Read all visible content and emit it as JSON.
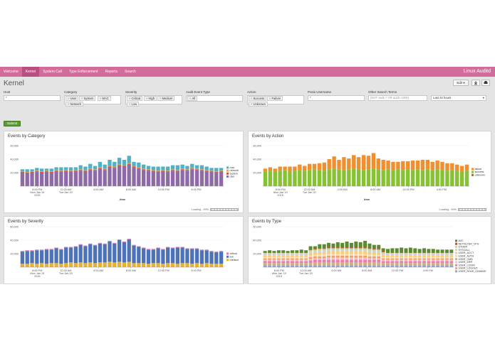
{
  "nav": {
    "items": [
      "Welcome",
      "Kernel",
      "System Call",
      "Type Enforcement",
      "Reports",
      "Search"
    ],
    "active": 1,
    "app_name": "Linux Auditd",
    "accent": "#d36b9b"
  },
  "page": {
    "title": "Kernel",
    "edit_label": "Edit ▾",
    "download_icon": "download-icon",
    "print_icon": "print-icon"
  },
  "filters": {
    "host": {
      "label": "Host",
      "value": "*"
    },
    "category": {
      "label": "Category",
      "tokens": [
        "User",
        "System",
        "MAC",
        "Network"
      ]
    },
    "severity": {
      "label": "Severity",
      "tokens": [
        "Critical",
        "High",
        "Medium",
        "Low"
      ]
    },
    "audit_event_type": {
      "label": "Audit Event Type",
      "tokens": [
        "All"
      ]
    },
    "action": {
      "label": "Action",
      "tokens": [
        "Success",
        "Failure",
        "Unknown"
      ]
    },
    "posix_username": {
      "label": "Posix Username",
      "value": "*"
    },
    "other_terms": {
      "label": "Other Search Terms",
      "placeholder": "(NOT auid=* OR auid!=1000)"
    },
    "time_range": {
      "value": "Last 24 hours"
    },
    "submit_label": "Submit"
  },
  "panels": [
    {
      "title": "Events by Category",
      "xfield": "_time",
      "loading": "Loading - 99%"
    },
    {
      "title": "Events by Action",
      "xfield": "_time",
      "loading": "Loading - 99%"
    },
    {
      "title": "Events by Severity"
    },
    {
      "title": "Events by Type"
    }
  ],
  "chart_data": [
    {
      "type": "bar",
      "stacked": true,
      "title": "Events by Category",
      "xlabel": "_time",
      "ylim": [
        0,
        60000
      ],
      "yticks": [
        "60,000",
        "40,000",
        "20,000"
      ],
      "xticks": [
        "8:00 PM\nMon Jan 19\n2015",
        "12:00 AM\nTue Jan 20",
        "4:00 AM",
        "8:00 AM",
        "12:00 PM",
        "4:00 PM"
      ],
      "legend_position": "right",
      "series": [
        {
          "name": "user",
          "color": "#8e6aa8",
          "values": [
            20,
            19,
            20,
            21,
            20,
            21,
            20,
            22,
            21,
            22,
            21,
            22,
            23,
            22,
            24,
            23,
            26,
            24,
            28,
            27,
            30,
            29,
            32,
            28,
            26,
            24,
            23,
            22,
            21,
            22,
            21,
            23,
            22,
            24,
            23,
            25,
            24,
            23,
            22,
            21,
            20,
            21
          ]
        },
        {
          "name": "system",
          "color": "#d04a3a",
          "values": [
            1,
            1,
            1,
            1,
            1,
            1,
            1,
            1,
            1,
            1,
            1,
            1,
            1,
            1,
            1,
            1,
            1,
            1,
            1,
            1,
            1,
            1,
            1,
            1,
            1,
            1,
            1,
            1,
            1,
            1,
            1,
            1,
            1,
            1,
            1,
            1,
            1,
            1,
            1,
            1,
            1,
            1
          ]
        },
        {
          "name": "network",
          "color": "#e9a43d",
          "values": [
            1,
            1,
            1,
            1,
            1,
            1,
            1,
            1,
            1,
            1,
            1,
            1,
            1,
            1,
            1,
            1,
            1,
            1,
            1,
            1,
            1,
            1,
            1,
            1,
            1,
            1,
            1,
            1,
            1,
            1,
            1,
            1,
            1,
            1,
            1,
            1,
            1,
            1,
            1,
            1,
            1,
            1
          ]
        },
        {
          "name": "mac",
          "color": "#4fb0c6",
          "values": [
            3,
            4,
            3,
            4,
            4,
            3,
            4,
            4,
            5,
            4,
            5,
            4,
            6,
            5,
            7,
            5,
            8,
            6,
            9,
            7,
            10,
            8,
            11,
            6,
            7,
            6,
            5,
            5,
            6,
            5,
            6,
            6,
            7,
            6,
            5,
            6,
            5,
            6,
            5,
            4,
            5,
            4
          ]
        }
      ]
    },
    {
      "type": "bar",
      "stacked": true,
      "title": "Events by Action",
      "xlabel": "_time",
      "ylim": [
        0,
        60000
      ],
      "yticks": [
        "60,000",
        "40,000",
        "20,000"
      ],
      "xticks": [
        "8:00 PM\nMon Jan 19\n2015",
        "12:00 AM\nTue Jan 20",
        "4:00 AM",
        "8:00 AM",
        "12:00 PM",
        "4:00 PM"
      ],
      "legend_position": "right",
      "series": [
        {
          "name": "unknown",
          "color": "#9b6d3a",
          "values": [
            0,
            0,
            0,
            0,
            0,
            0,
            0,
            0,
            0,
            0,
            0,
            0,
            0,
            0,
            0,
            0,
            0,
            0,
            0,
            0,
            0,
            0,
            0,
            0,
            0,
            0,
            0,
            0,
            0,
            0,
            0,
            0,
            0,
            0,
            0,
            0,
            0,
            0,
            0,
            0,
            0,
            0
          ]
        },
        {
          "name": "success",
          "color": "#86c234",
          "values": [
            22,
            23,
            22,
            23,
            24,
            22,
            23,
            24,
            23,
            24,
            25,
            24,
            23,
            25,
            26,
            25,
            24,
            25,
            26,
            25,
            24,
            25,
            26,
            25,
            24,
            25,
            24,
            25,
            24,
            25,
            24,
            25,
            24,
            25,
            24,
            25,
            24,
            23,
            24,
            23,
            22,
            23
          ]
        },
        {
          "name": "failure",
          "color": "#ef8f2f",
          "values": [
            4,
            5,
            4,
            6,
            5,
            7,
            6,
            8,
            7,
            9,
            8,
            10,
            12,
            15,
            18,
            14,
            19,
            16,
            20,
            18,
            22,
            20,
            23,
            16,
            15,
            13,
            12,
            11,
            13,
            12,
            14,
            13,
            15,
            14,
            12,
            13,
            12,
            11,
            10,
            9,
            8,
            9
          ]
        }
      ]
    },
    {
      "type": "bar",
      "stacked": true,
      "title": "Events by Severity",
      "ylim": [
        0,
        60000
      ],
      "yticks": [
        "60,000",
        "40,000",
        "20,000"
      ],
      "xticks": [
        "8:00 PM\nMon Jan 19\n2015",
        "12:00 AM\nTue Jan 20",
        "4:00 AM",
        "8:00 AM",
        "12:00 PM",
        "4:00 PM"
      ],
      "legend_position": "right",
      "series": [
        {
          "name": "medium",
          "color": "#e8b033",
          "values": [
            5,
            5,
            6,
            5,
            6,
            5,
            6,
            6,
            5,
            6,
            7,
            6,
            7,
            6,
            7,
            6,
            7,
            7,
            8,
            7,
            8,
            7,
            8,
            6,
            6,
            6,
            5,
            6,
            6,
            5,
            6,
            6,
            5,
            6,
            6,
            5,
            6,
            5,
            6,
            5,
            5,
            5
          ]
        },
        {
          "name": "low",
          "color": "#4d72b8",
          "values": [
            18,
            19,
            18,
            20,
            19,
            21,
            20,
            22,
            21,
            23,
            22,
            24,
            26,
            25,
            27,
            26,
            28,
            27,
            30,
            28,
            32,
            30,
            33,
            26,
            24,
            22,
            21,
            20,
            22,
            21,
            23,
            22,
            24,
            23,
            21,
            22,
            21,
            20,
            19,
            18,
            17,
            18
          ]
        },
        {
          "name": "critical",
          "color": "#d979b0",
          "values": [
            1,
            1,
            1,
            1,
            1,
            1,
            1,
            1,
            1,
            1,
            1,
            1,
            1,
            1,
            1,
            1,
            1,
            1,
            1,
            1,
            1,
            1,
            1,
            1,
            1,
            1,
            1,
            1,
            1,
            1,
            1,
            1,
            1,
            1,
            1,
            1,
            1,
            1,
            1,
            1,
            1,
            1
          ]
        }
      ]
    },
    {
      "type": "bar",
      "stacked": true,
      "title": "Events by Type",
      "ylim": [
        0,
        60000
      ],
      "yticks": [
        "60,000",
        "40,000",
        "20,000"
      ],
      "xticks": [
        "8:00 PM\nMon Jan 19\n2015",
        "12:00 AM\nTue Jan 20",
        "4:00 AM",
        "8:00 AM",
        "12:00 PM",
        "4:00 PM"
      ],
      "legend_position": "right",
      "series": [
        {
          "name": "USER_ROLE_CHANGE",
          "color": "#8fa5d6",
          "values": [
            3,
            3,
            3,
            3,
            3,
            3,
            3,
            3,
            3,
            3,
            3,
            3,
            3,
            3,
            3,
            3,
            3,
            3,
            3,
            3,
            3,
            3,
            3,
            3,
            3,
            3,
            3,
            3,
            3,
            3,
            3,
            3,
            3,
            3,
            3,
            3,
            3,
            3,
            3,
            3,
            3,
            3
          ]
        },
        {
          "name": "USER_LOGOUT",
          "color": "#d3b07a",
          "values": [
            3,
            3,
            3,
            3,
            3,
            3,
            3,
            3,
            3,
            3,
            3,
            4,
            4,
            4,
            4,
            4,
            4,
            4,
            4,
            4,
            4,
            4,
            4,
            4,
            4,
            4,
            3,
            3,
            3,
            3,
            3,
            3,
            3,
            3,
            3,
            3,
            3,
            3,
            3,
            3,
            3,
            3
          ]
        },
        {
          "name": "USER_LOGIN",
          "color": "#e97fb0",
          "values": [
            3,
            3,
            3,
            3,
            3,
            3,
            3,
            3,
            3,
            3,
            4,
            4,
            4,
            4,
            4,
            4,
            4,
            4,
            4,
            4,
            4,
            4,
            4,
            4,
            4,
            4,
            3,
            3,
            3,
            3,
            3,
            3,
            3,
            3,
            3,
            3,
            3,
            3,
            3,
            3,
            3,
            3
          ]
        },
        {
          "name": "USER_ERR",
          "color": "#f3c1c9",
          "values": [
            2,
            2,
            2,
            2,
            2,
            2,
            2,
            2,
            2,
            2,
            2,
            2,
            2,
            2,
            3,
            3,
            3,
            3,
            3,
            3,
            3,
            3,
            3,
            2,
            2,
            2,
            2,
            2,
            2,
            2,
            2,
            2,
            2,
            2,
            2,
            2,
            2,
            2,
            2,
            2,
            2,
            2
          ]
        },
        {
          "name": "USER_CMD",
          "color": "#f1a06b",
          "values": [
            2,
            2,
            2,
            2,
            2,
            2,
            2,
            2,
            2,
            2,
            3,
            3,
            3,
            3,
            3,
            3,
            3,
            3,
            3,
            3,
            3,
            3,
            3,
            3,
            3,
            3,
            2,
            2,
            2,
            2,
            2,
            2,
            2,
            2,
            2,
            2,
            2,
            2,
            2,
            2,
            2,
            2
          ]
        },
        {
          "name": "USER_AUTH",
          "color": "#f8d9b0",
          "values": [
            2,
            2,
            2,
            2,
            2,
            2,
            2,
            2,
            2,
            2,
            2,
            2,
            3,
            3,
            3,
            3,
            3,
            3,
            3,
            3,
            3,
            3,
            3,
            3,
            2,
            2,
            2,
            2,
            2,
            2,
            2,
            2,
            2,
            2,
            2,
            2,
            2,
            2,
            2,
            2,
            2,
            2
          ]
        },
        {
          "name": "USER_ACCT",
          "color": "#f5d06a",
          "values": [
            2,
            2,
            2,
            2,
            2,
            2,
            2,
            2,
            2,
            2,
            3,
            3,
            3,
            3,
            3,
            3,
            3,
            3,
            3,
            3,
            3,
            3,
            3,
            3,
            3,
            3,
            2,
            2,
            2,
            2,
            2,
            2,
            2,
            2,
            2,
            2,
            2,
            2,
            2,
            2,
            2,
            2
          ]
        },
        {
          "name": "SYSCALL",
          "color": "#d9c9e4",
          "values": [
            2,
            2,
            2,
            2,
            2,
            2,
            2,
            2,
            2,
            2,
            2,
            2,
            2,
            2,
            2,
            2,
            2,
            2,
            2,
            2,
            2,
            2,
            2,
            2,
            2,
            2,
            2,
            2,
            2,
            2,
            2,
            2,
            2,
            2,
            2,
            2,
            2,
            2,
            2,
            2,
            2,
            2
          ]
        },
        {
          "name": "OTHER",
          "color": "#c7dca0",
          "values": [
            2,
            2,
            2,
            2,
            2,
            2,
            2,
            2,
            2,
            2,
            3,
            3,
            3,
            3,
            3,
            3,
            3,
            3,
            3,
            3,
            3,
            3,
            3,
            3,
            3,
            3,
            3,
            2,
            2,
            2,
            2,
            2,
            2,
            2,
            2,
            2,
            2,
            2,
            2,
            2,
            2,
            2
          ]
        },
        {
          "name": "NETFILTER_CFG",
          "color": "#d8432e",
          "values": [
            1,
            1,
            1,
            1,
            1,
            1,
            1,
            1,
            1,
            1,
            1,
            1,
            1,
            1,
            1,
            1,
            1,
            1,
            1,
            1,
            1,
            1,
            1,
            1,
            1,
            1,
            1,
            1,
            1,
            1,
            1,
            1,
            1,
            1,
            1,
            1,
            1,
            1,
            1,
            1,
            1,
            1
          ]
        },
        {
          "name": "AVC",
          "color": "#5c8a2f",
          "values": [
            2,
            3,
            2,
            3,
            3,
            2,
            3,
            3,
            4,
            3,
            5,
            4,
            6,
            6,
            7,
            6,
            8,
            7,
            9,
            7,
            9,
            8,
            10,
            7,
            6,
            6,
            5,
            5,
            6,
            6,
            7,
            6,
            7,
            6,
            5,
            6,
            5,
            5,
            4,
            4,
            4,
            4
          ]
        }
      ]
    }
  ]
}
